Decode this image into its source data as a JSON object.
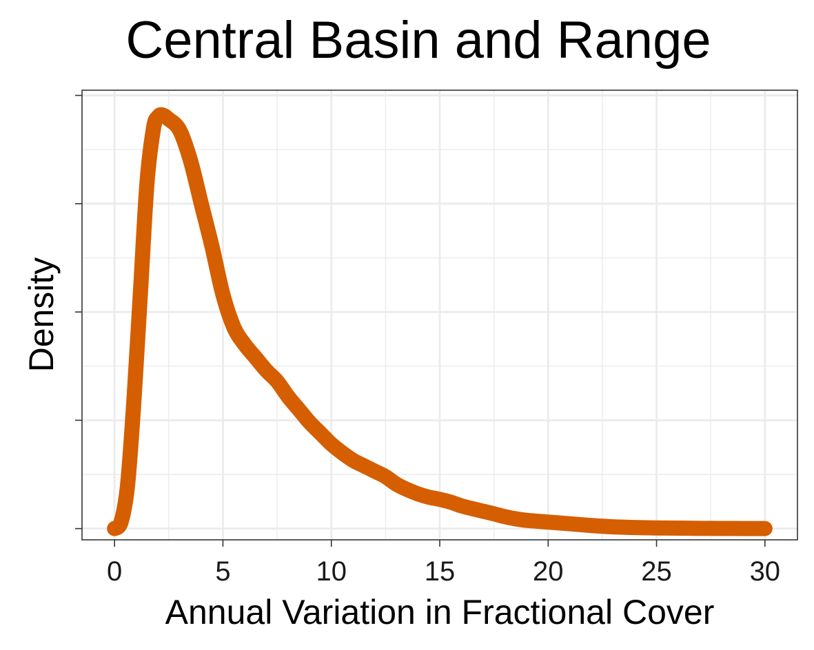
{
  "chart_data": {
    "type": "line",
    "title": "Central Basin and Range",
    "xlabel": "Annual Variation in Fractional Cover",
    "ylabel": "Density",
    "xlim": [
      -1.5,
      31.5
    ],
    "ylim": [
      -0.0052,
      0.2024
    ],
    "x_ticks": [
      0,
      5,
      10,
      15,
      20,
      25,
      30
    ],
    "x_tick_labels": [
      "0",
      "5",
      "10",
      "15",
      "20",
      "25",
      "30"
    ],
    "y_tick_labels_shown": false,
    "grid": true,
    "legend": "none",
    "series": [
      {
        "color": "#D55E00",
        "x": [
          0,
          0.3,
          0.6,
          0.9,
          1.2,
          1.5,
          1.8,
          2.0,
          2.2,
          2.5,
          3.0,
          3.5,
          4.0,
          4.5,
          5.0,
          5.5,
          6.0,
          6.5,
          7.0,
          7.5,
          8.0,
          8.5,
          9.0,
          9.5,
          10.0,
          10.5,
          11.0,
          11.5,
          12.0,
          12.5,
          13.0,
          13.5,
          14.0,
          14.5,
          15.0,
          15.5,
          16.0,
          16.5,
          17.0,
          17.5,
          18.0,
          18.5,
          19.0,
          20.0,
          21.0,
          22.0,
          23.0,
          24.0,
          25.0,
          26.0,
          27.0,
          28.0,
          29.0,
          30.0
        ],
        "y": [
          0.0,
          0.003,
          0.02,
          0.06,
          0.11,
          0.16,
          0.185,
          0.19,
          0.191,
          0.189,
          0.184,
          0.17,
          0.15,
          0.13,
          0.108,
          0.093,
          0.085,
          0.079,
          0.073,
          0.068,
          0.061,
          0.055,
          0.049,
          0.044,
          0.039,
          0.035,
          0.0315,
          0.029,
          0.0265,
          0.024,
          0.0205,
          0.018,
          0.016,
          0.0145,
          0.0135,
          0.0122,
          0.0105,
          0.0092,
          0.008,
          0.0068,
          0.0055,
          0.0045,
          0.0038,
          0.003,
          0.0022,
          0.0014,
          0.0008,
          0.0005,
          0.0003,
          0.0002,
          0.0001,
          5e-05,
          2e-05,
          0.0
        ]
      }
    ]
  }
}
